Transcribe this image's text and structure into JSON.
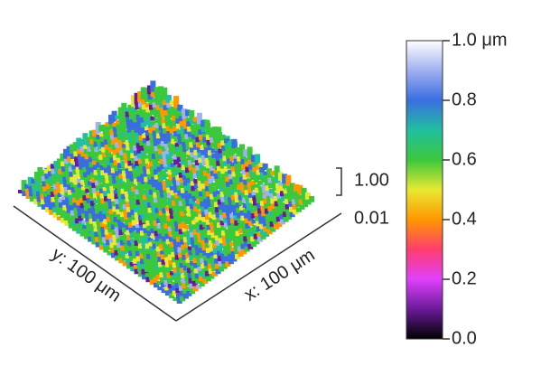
{
  "chart_data": {
    "type": "surface3d",
    "x_label": "x: 100 μm",
    "y_label": "y: 100 μm",
    "zlim": [
      0,
      1
    ],
    "zticks": [
      {
        "value": 1.0,
        "label": "1.0 μm"
      },
      0.8,
      0.6,
      0.4,
      {
        "value": 0.0,
        "label": "0.0"
      },
      0.2
    ],
    "height_scale": [
      "1.00",
      "0.01"
    ],
    "colormap": [
      "#000000",
      "#6a1b9a",
      "#e040fb",
      "#ff3d6e",
      "#ff9800",
      "#e8e832",
      "#3cc83c",
      "#20c0a0",
      "#3a6ee0",
      "#a0b0f0",
      "#ffffff"
    ]
  }
}
